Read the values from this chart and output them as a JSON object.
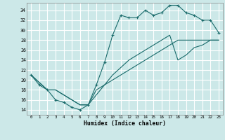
{
  "xlabel": "Humidex (Indice chaleur)",
  "bg_color": "#cce8e8",
  "grid_color": "#ffffff",
  "line_color": "#1a6b6b",
  "xlim": [
    -0.5,
    23.5
  ],
  "ylim": [
    13.0,
    35.5
  ],
  "xticks": [
    0,
    1,
    2,
    3,
    4,
    5,
    6,
    7,
    8,
    9,
    10,
    11,
    12,
    13,
    14,
    15,
    16,
    17,
    18,
    19,
    20,
    21,
    22,
    23
  ],
  "yticks": [
    14,
    16,
    18,
    20,
    22,
    24,
    26,
    28,
    30,
    32,
    34
  ],
  "line1_x": [
    0,
    1,
    2,
    3,
    4,
    5,
    6,
    7,
    8,
    9,
    10,
    11,
    12,
    13,
    14,
    15,
    16,
    17,
    18,
    19,
    20,
    21,
    22,
    23
  ],
  "line1_y": [
    21,
    19,
    18,
    16,
    15.5,
    14.5,
    14,
    15,
    19,
    23.5,
    29,
    33,
    32.5,
    32.5,
    34,
    33,
    33.5,
    35,
    35,
    33.5,
    33,
    32,
    32,
    29.5
  ],
  "line2_x": [
    0,
    2,
    3,
    4,
    5,
    6,
    7,
    8,
    9,
    10,
    11,
    12,
    13,
    14,
    15,
    16,
    17,
    18,
    19,
    20,
    21,
    22,
    23
  ],
  "line2_y": [
    21,
    18,
    18,
    17,
    16,
    15,
    15,
    18,
    19,
    20,
    21,
    22,
    23,
    24,
    25,
    26,
    27,
    28,
    28,
    28,
    28,
    28,
    28
  ],
  "line3_x": [
    0,
    2,
    3,
    4,
    5,
    6,
    7,
    8,
    9,
    10,
    11,
    12,
    13,
    14,
    15,
    16,
    17,
    18,
    19,
    20,
    21,
    22,
    23
  ],
  "line3_y": [
    21,
    18,
    18,
    17,
    16,
    15,
    15,
    17,
    19,
    21,
    22.5,
    24,
    25,
    26,
    27,
    28,
    29,
    24,
    25,
    26.5,
    27,
    28,
    28
  ]
}
